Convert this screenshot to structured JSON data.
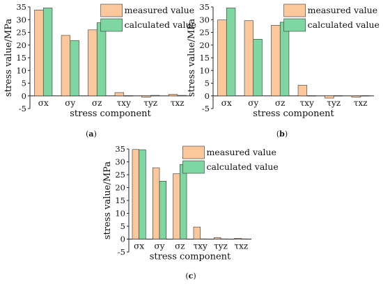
{
  "colors": {
    "measured": "#FCC89B",
    "calculated": "#7ED6A0",
    "stroke": "#333333"
  },
  "chart_data": [
    {
      "type": "bar",
      "panel_label": "a",
      "categories": [
        "σx",
        "σy",
        "σz",
        "τxy",
        "τyz",
        "τxz"
      ],
      "series": [
        {
          "name": "measured value",
          "values": [
            33.8,
            23.8,
            26.0,
            1.3,
            -0.5,
            0.6
          ]
        },
        {
          "name": "calculated value",
          "values": [
            34.6,
            21.8,
            28.8,
            0.1,
            0.2,
            0.2
          ]
        }
      ],
      "xlabel": "stress component",
      "ylabel": "stress value/MPa",
      "ylim": [
        -5,
        35
      ],
      "yticks": [
        -5,
        0,
        5,
        10,
        15,
        20,
        25,
        30,
        35
      ],
      "grid": false,
      "legend": "top-right"
    },
    {
      "type": "bar",
      "panel_label": "b",
      "categories": [
        "σx",
        "σy",
        "σz",
        "τxy",
        "τyz",
        "τxz"
      ],
      "series": [
        {
          "name": "measured value",
          "values": [
            29.9,
            29.6,
            27.8,
            4.2,
            -0.9,
            -0.5
          ]
        },
        {
          "name": "calculated value",
          "values": [
            34.6,
            22.3,
            29.0,
            0.1,
            0.1,
            0.1
          ]
        }
      ],
      "xlabel": "stress component",
      "ylabel": "stress value/MPa",
      "ylim": [
        -5,
        35
      ],
      "yticks": [
        -5,
        0,
        5,
        10,
        15,
        20,
        25,
        30,
        35
      ],
      "grid": false,
      "legend": "top-right"
    },
    {
      "type": "bar",
      "panel_label": "c",
      "categories": [
        "σx",
        "σy",
        "σz",
        "τxy",
        "τyz",
        "τxz"
      ],
      "series": [
        {
          "name": "measured value",
          "values": [
            34.8,
            27.7,
            25.4,
            4.7,
            0.6,
            0.3
          ]
        },
        {
          "name": "calculated value",
          "values": [
            34.7,
            22.5,
            29.0,
            0.1,
            0.1,
            0.1
          ]
        }
      ],
      "xlabel": "stress component",
      "ylabel": "stress value/MPa",
      "ylim": [
        -5,
        35
      ],
      "yticks": [
        -5,
        0,
        5,
        10,
        15,
        20,
        25,
        30,
        35
      ],
      "grid": false,
      "legend": "top-right"
    }
  ]
}
